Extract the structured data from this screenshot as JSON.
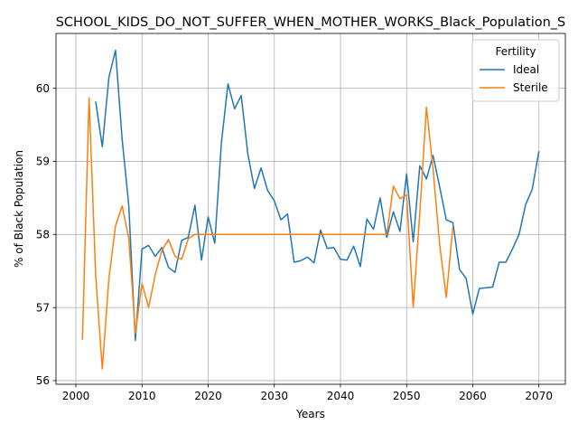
{
  "chart_data": {
    "type": "line",
    "title": "SCHOOL_KIDS_DO_NOT_SUFFER_WHEN_MOTHER_WORKS_Black_Population_S",
    "xlabel": "Years",
    "ylabel": "% of Black Population",
    "xlim": [
      1997,
      2074
    ],
    "ylim": [
      55.95,
      60.75
    ],
    "x_ticks": [
      2000,
      2010,
      2020,
      2030,
      2040,
      2050,
      2060,
      2070
    ],
    "y_ticks": [
      56,
      57,
      58,
      59,
      60
    ],
    "grid": true,
    "legend": {
      "title": "Fertility",
      "placement": "top-right"
    },
    "series": [
      {
        "name": "Ideal",
        "color": "#1f77b4",
        "points": [
          [
            2003,
            59.82
          ],
          [
            2004,
            59.2
          ],
          [
            2005,
            60.15
          ],
          [
            2006,
            60.52
          ],
          [
            2007,
            59.3
          ],
          [
            2008,
            58.4
          ],
          [
            2009,
            56.55
          ],
          [
            2010,
            57.8
          ],
          [
            2011,
            57.85
          ],
          [
            2012,
            57.7
          ],
          [
            2013,
            57.82
          ],
          [
            2014,
            57.55
          ],
          [
            2015,
            57.48
          ],
          [
            2016,
            57.92
          ],
          [
            2017,
            57.96
          ],
          [
            2018,
            58.4
          ],
          [
            2019,
            57.65
          ],
          [
            2020,
            58.24
          ],
          [
            2021,
            57.88
          ],
          [
            2022,
            59.25
          ],
          [
            2023,
            60.06
          ],
          [
            2024,
            59.72
          ],
          [
            2025,
            59.9
          ],
          [
            2026,
            59.1
          ],
          [
            2027,
            58.63
          ],
          [
            2028,
            58.91
          ],
          [
            2029,
            58.6
          ],
          [
            2030,
            58.46
          ],
          [
            2031,
            58.2
          ],
          [
            2032,
            58.28
          ],
          [
            2033,
            57.62
          ],
          [
            2034,
            57.64
          ],
          [
            2035,
            57.69
          ],
          [
            2036,
            57.61
          ],
          [
            2037,
            58.06
          ],
          [
            2038,
            57.81
          ],
          [
            2039,
            57.82
          ],
          [
            2040,
            57.66
          ],
          [
            2041,
            57.65
          ],
          [
            2042,
            57.84
          ],
          [
            2043,
            57.56
          ],
          [
            2044,
            58.21
          ],
          [
            2045,
            58.07
          ],
          [
            2046,
            58.5
          ],
          [
            2047,
            57.96
          ],
          [
            2048,
            58.31
          ],
          [
            2049,
            58.04
          ],
          [
            2050,
            58.83
          ],
          [
            2051,
            57.9
          ],
          [
            2052,
            58.94
          ],
          [
            2053,
            58.76
          ],
          [
            2054,
            59.08
          ],
          [
            2055,
            58.65
          ],
          [
            2056,
            58.2
          ],
          [
            2057,
            58.16
          ],
          [
            2058,
            57.52
          ],
          [
            2059,
            57.4
          ],
          [
            2060,
            56.91
          ],
          [
            2061,
            57.26
          ],
          [
            2062,
            57.27
          ],
          [
            2063,
            57.28
          ],
          [
            2064,
            57.62
          ],
          [
            2065,
            57.62
          ],
          [
            2066,
            57.8
          ],
          [
            2067,
            58.0
          ],
          [
            2068,
            58.41
          ],
          [
            2069,
            58.62
          ],
          [
            2070,
            59.14
          ]
        ]
      },
      {
        "name": "Sterile",
        "color": "#ff7f0e",
        "points": [
          [
            2001,
            56.56
          ],
          [
            2002,
            59.87
          ],
          [
            2003,
            57.44
          ],
          [
            2004,
            56.16
          ],
          [
            2005,
            57.4
          ],
          [
            2006,
            58.12
          ],
          [
            2007,
            58.39
          ],
          [
            2008,
            57.95
          ],
          [
            2009,
            56.65
          ],
          [
            2010,
            57.33
          ],
          [
            2011,
            57.0
          ],
          [
            2012,
            57.45
          ],
          [
            2013,
            57.78
          ],
          [
            2014,
            57.93
          ],
          [
            2015,
            57.7
          ],
          [
            2016,
            57.66
          ],
          [
            2017,
            57.94
          ],
          [
            2018,
            58.0
          ],
          [
            2019,
            58.0
          ],
          [
            2020,
            58.0
          ],
          [
            2021,
            58.0
          ],
          [
            2022,
            58.0
          ],
          [
            2023,
            58.0
          ],
          [
            2024,
            58.0
          ],
          [
            2025,
            58.0
          ],
          [
            2026,
            58.0
          ],
          [
            2027,
            58.0
          ],
          [
            2028,
            58.0
          ],
          [
            2029,
            58.0
          ],
          [
            2030,
            58.0
          ],
          [
            2031,
            58.0
          ],
          [
            2032,
            58.0
          ],
          [
            2033,
            58.0
          ],
          [
            2034,
            58.0
          ],
          [
            2035,
            58.0
          ],
          [
            2036,
            58.0
          ],
          [
            2037,
            58.0
          ],
          [
            2038,
            58.0
          ],
          [
            2039,
            58.0
          ],
          [
            2040,
            58.0
          ],
          [
            2041,
            58.0
          ],
          [
            2042,
            58.0
          ],
          [
            2043,
            58.0
          ],
          [
            2044,
            58.0
          ],
          [
            2045,
            58.0
          ],
          [
            2046,
            58.0
          ],
          [
            2047,
            58.0
          ],
          [
            2048,
            58.66
          ],
          [
            2049,
            58.49
          ],
          [
            2050,
            58.54
          ],
          [
            2051,
            57.0
          ],
          [
            2052,
            58.3
          ],
          [
            2053,
            59.74
          ],
          [
            2054,
            58.9
          ],
          [
            2055,
            57.86
          ],
          [
            2056,
            57.14
          ],
          [
            2057,
            58.11
          ]
        ]
      }
    ]
  }
}
